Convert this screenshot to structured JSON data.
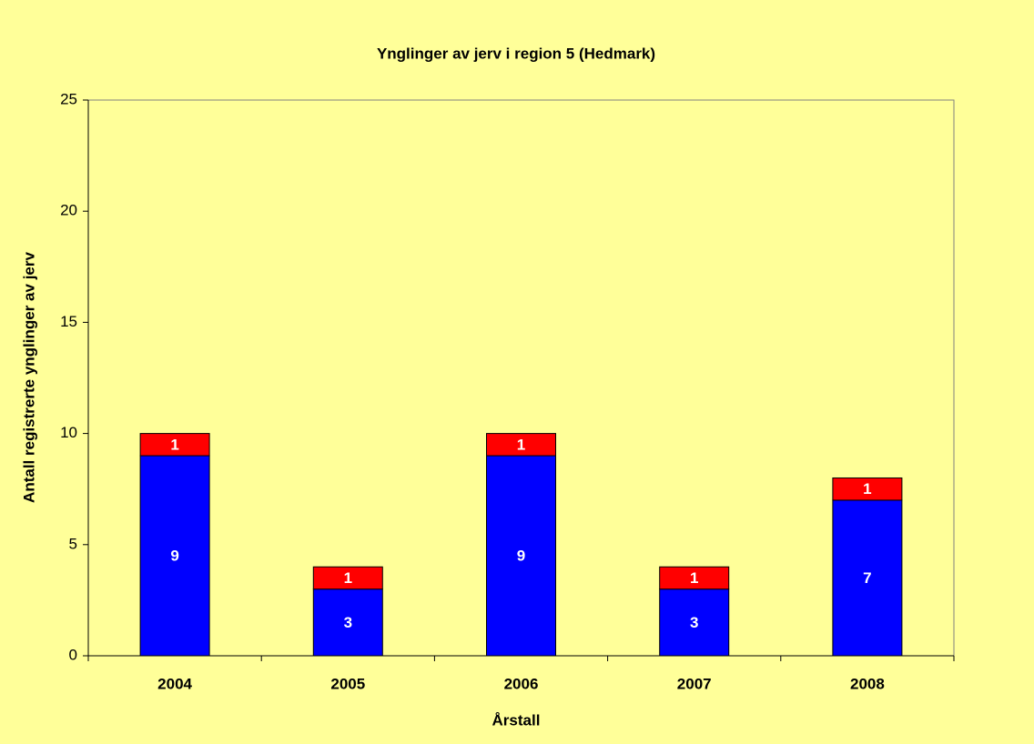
{
  "chart_data": {
    "type": "stacked_bar",
    "title": "Ynglinger av jerv i region 5 (Hedmark)",
    "x_label": "Årstall",
    "y_label": "Antall registrerte ynglinger av jerv",
    "categories": [
      "2004",
      "2005",
      "2006",
      "2007",
      "2008"
    ],
    "series": [
      {
        "color": "#0000ff",
        "values": [
          9,
          3,
          9,
          3,
          7
        ]
      },
      {
        "color": "#ff0000",
        "values": [
          1,
          1,
          1,
          1,
          1
        ]
      }
    ],
    "ylim": [
      0,
      25
    ],
    "yticks": [
      0,
      5,
      10,
      15,
      20,
      25
    ],
    "grid": false
  }
}
